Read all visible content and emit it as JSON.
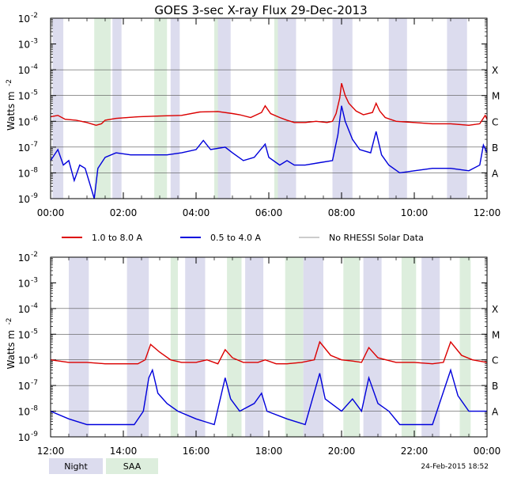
{
  "chart_data": {
    "type": "line",
    "title": "GOES 3-sec X-ray Flux   29-Dec-2013",
    "ylabel_text": "Watts m",
    "ylabel_sup": "-2",
    "yscale": "log",
    "ylim": [
      1e-09,
      0.01
    ],
    "y_tick_base": "10",
    "y_ticks": [
      {
        "exp": -2,
        "label": "-2"
      },
      {
        "exp": -3,
        "label": "-3"
      },
      {
        "exp": -4,
        "label": "-4"
      },
      {
        "exp": -5,
        "label": "-5"
      },
      {
        "exp": -6,
        "label": "-6"
      },
      {
        "exp": -7,
        "label": "-7"
      },
      {
        "exp": -8,
        "label": "-8"
      },
      {
        "exp": -9,
        "label": "-9"
      }
    ],
    "flare_classes": [
      {
        "label": "X",
        "exp": -4
      },
      {
        "label": "M",
        "exp": -5
      },
      {
        "label": "C",
        "exp": -6
      },
      {
        "label": "B",
        "exp": -7
      },
      {
        "label": "A",
        "exp": -8
      }
    ],
    "legend": [
      {
        "label": "1.0 to 8.0 A",
        "color": "#dd0000"
      },
      {
        "label": "0.5 to 4.0 A",
        "color": "#0000dd"
      },
      {
        "label": "No RHESSI Solar Data",
        "color": "#999999"
      }
    ],
    "shade_legend": [
      {
        "label": "Night",
        "color": "#dcdcee"
      },
      {
        "label": "SAA",
        "color": "#ddeedd"
      }
    ],
    "footer": "24-Feb-2015 18:52",
    "panels": [
      {
        "name": "00-12 UT",
        "xlim": [
          0,
          12
        ],
        "x_tick_labels": [
          "00:00",
          "02:00",
          "04:00",
          "06:00",
          "08:00",
          "10:00",
          "12:00"
        ],
        "night": [
          [
            0.05,
            0.35
          ],
          [
            1.7,
            1.95
          ],
          [
            3.3,
            3.55
          ],
          [
            4.6,
            4.95
          ],
          [
            6.25,
            6.75
          ],
          [
            7.75,
            8.3
          ],
          [
            9.3,
            9.8
          ],
          [
            10.9,
            11.45
          ]
        ],
        "saa": [
          [
            1.2,
            1.65
          ],
          [
            2.85,
            3.2
          ],
          [
            4.5,
            4.75
          ],
          [
            6.15,
            6.35
          ]
        ],
        "long": [
          [
            0,
            1.5e-06
          ],
          [
            0.2,
            1.7e-06
          ],
          [
            0.4,
            1.2e-06
          ],
          [
            0.7,
            1.1e-06
          ],
          [
            1.0,
            9e-07
          ],
          [
            1.25,
            7e-07
          ],
          [
            1.4,
            8e-07
          ],
          [
            1.5,
            1.1e-06
          ],
          [
            1.8,
            1.3e-06
          ],
          [
            2.4,
            1.5e-06
          ],
          [
            3.0,
            1.6e-06
          ],
          [
            3.6,
            1.7e-06
          ],
          [
            4.1,
            2.3e-06
          ],
          [
            4.6,
            2.4e-06
          ],
          [
            5.0,
            2e-06
          ],
          [
            5.2,
            1.8e-06
          ],
          [
            5.5,
            1.4e-06
          ],
          [
            5.8,
            2.2e-06
          ],
          [
            5.9,
            4e-06
          ],
          [
            6.05,
            2e-06
          ],
          [
            6.3,
            1.4e-06
          ],
          [
            6.5,
            1.1e-06
          ],
          [
            6.7,
            9e-07
          ],
          [
            7.0,
            9e-07
          ],
          [
            7.3,
            1e-06
          ],
          [
            7.6,
            9e-07
          ],
          [
            7.75,
            1e-06
          ],
          [
            7.85,
            2e-06
          ],
          [
            7.95,
            8e-06
          ],
          [
            8.0,
            3e-05
          ],
          [
            8.1,
            1e-05
          ],
          [
            8.2,
            5e-06
          ],
          [
            8.4,
            2.5e-06
          ],
          [
            8.6,
            1.8e-06
          ],
          [
            8.85,
            2.2e-06
          ],
          [
            8.95,
            5e-06
          ],
          [
            9.05,
            2.5e-06
          ],
          [
            9.2,
            1.4e-06
          ],
          [
            9.5,
            1e-06
          ],
          [
            10.0,
            9e-07
          ],
          [
            10.5,
            8e-07
          ],
          [
            11.0,
            8e-07
          ],
          [
            11.5,
            7e-07
          ],
          [
            11.8,
            8e-07
          ],
          [
            11.95,
            1.7e-06
          ],
          [
            12.0,
            1.2e-06
          ]
        ],
        "short": [
          [
            0,
            3e-08
          ],
          [
            0.2,
            8e-08
          ],
          [
            0.35,
            2e-08
          ],
          [
            0.5,
            3e-08
          ],
          [
            0.65,
            5e-09
          ],
          [
            0.8,
            2e-08
          ],
          [
            0.95,
            1.5e-08
          ],
          [
            1.1,
            3e-09
          ],
          [
            1.2,
            1e-09
          ],
          [
            1.3,
            1.5e-08
          ],
          [
            1.5,
            4e-08
          ],
          [
            1.8,
            6e-08
          ],
          [
            2.2,
            5e-08
          ],
          [
            2.7,
            5e-08
          ],
          [
            3.2,
            5e-08
          ],
          [
            3.6,
            6e-08
          ],
          [
            4.0,
            8e-08
          ],
          [
            4.2,
            1.8e-07
          ],
          [
            4.4,
            8e-08
          ],
          [
            4.8,
            1e-07
          ],
          [
            5.0,
            6e-08
          ],
          [
            5.3,
            3e-08
          ],
          [
            5.6,
            4e-08
          ],
          [
            5.9,
            1.3e-07
          ],
          [
            6.0,
            4e-08
          ],
          [
            6.3,
            2e-08
          ],
          [
            6.5,
            3e-08
          ],
          [
            6.7,
            2e-08
          ],
          [
            7.0,
            2e-08
          ],
          [
            7.4,
            2.5e-08
          ],
          [
            7.75,
            3e-08
          ],
          [
            7.9,
            3e-07
          ],
          [
            8.0,
            4e-06
          ],
          [
            8.1,
            1e-06
          ],
          [
            8.3,
            2e-07
          ],
          [
            8.5,
            8e-08
          ],
          [
            8.8,
            6e-08
          ],
          [
            8.95,
            4e-07
          ],
          [
            9.1,
            5e-08
          ],
          [
            9.3,
            2e-08
          ],
          [
            9.6,
            1e-08
          ],
          [
            10.0,
            1.2e-08
          ],
          [
            10.5,
            1.5e-08
          ],
          [
            11.0,
            1.5e-08
          ],
          [
            11.5,
            1.2e-08
          ],
          [
            11.8,
            2e-08
          ],
          [
            11.9,
            1.2e-07
          ],
          [
            12.0,
            6e-08
          ]
        ]
      },
      {
        "name": "12-24 UT",
        "xlim": [
          12,
          24
        ],
        "x_tick_labels": [
          "12:00",
          "14:00",
          "16:00",
          "18:00",
          "20:00",
          "22:00",
          "00:00"
        ],
        "night": [
          [
            12.5,
            13.05
          ],
          [
            14.1,
            14.7
          ],
          [
            15.7,
            16.25
          ],
          [
            17.35,
            17.85
          ],
          [
            18.95,
            19.5
          ],
          [
            20.6,
            21.1
          ],
          [
            22.2,
            22.7
          ]
        ],
        "saa": [
          [
            15.3,
            15.5
          ],
          [
            16.85,
            17.25
          ],
          [
            18.45,
            18.95
          ],
          [
            20.05,
            20.5
          ],
          [
            21.65,
            22.05
          ],
          [
            23.25,
            23.55
          ]
        ],
        "long": [
          [
            12.0,
            1e-06
          ],
          [
            12.5,
            8e-07
          ],
          [
            13.0,
            8e-07
          ],
          [
            13.5,
            7e-07
          ],
          [
            14.0,
            7e-07
          ],
          [
            14.4,
            7e-07
          ],
          [
            14.6,
            1e-06
          ],
          [
            14.75,
            4e-06
          ],
          [
            15.0,
            2e-06
          ],
          [
            15.3,
            1e-06
          ],
          [
            15.6,
            8e-07
          ],
          [
            16.0,
            8e-07
          ],
          [
            16.3,
            1e-06
          ],
          [
            16.6,
            7e-07
          ],
          [
            16.8,
            2.5e-06
          ],
          [
            17.0,
            1.2e-06
          ],
          [
            17.3,
            8e-07
          ],
          [
            17.7,
            8e-07
          ],
          [
            17.9,
            1e-06
          ],
          [
            18.2,
            7e-07
          ],
          [
            18.5,
            7e-07
          ],
          [
            18.9,
            8e-07
          ],
          [
            19.25,
            1e-06
          ],
          [
            19.4,
            5e-06
          ],
          [
            19.7,
            1.5e-06
          ],
          [
            20.0,
            1e-06
          ],
          [
            20.3,
            9e-07
          ],
          [
            20.55,
            8e-07
          ],
          [
            20.75,
            3e-06
          ],
          [
            21.0,
            1.2e-06
          ],
          [
            21.5,
            8e-07
          ],
          [
            22.0,
            8e-07
          ],
          [
            22.5,
            7e-07
          ],
          [
            22.8,
            8e-07
          ],
          [
            23.0,
            5e-06
          ],
          [
            23.3,
            1.5e-06
          ],
          [
            23.6,
            1e-06
          ],
          [
            24.0,
            8e-07
          ]
        ],
        "short": [
          [
            12.0,
            1e-08
          ],
          [
            12.5,
            5e-09
          ],
          [
            13.0,
            3e-09
          ],
          [
            13.5,
            3e-09
          ],
          [
            14.0,
            3e-09
          ],
          [
            14.3,
            3e-09
          ],
          [
            14.55,
            1e-08
          ],
          [
            14.7,
            2e-07
          ],
          [
            14.8,
            4e-07
          ],
          [
            14.95,
            5e-08
          ],
          [
            15.2,
            2e-08
          ],
          [
            15.5,
            1e-08
          ],
          [
            16.0,
            5e-09
          ],
          [
            16.5,
            3e-09
          ],
          [
            16.8,
            2e-07
          ],
          [
            16.95,
            3e-08
          ],
          [
            17.2,
            1e-08
          ],
          [
            17.6,
            2e-08
          ],
          [
            17.8,
            5e-08
          ],
          [
            17.95,
            1e-08
          ],
          [
            18.5,
            5e-09
          ],
          [
            19.0,
            3e-09
          ],
          [
            19.4,
            3e-07
          ],
          [
            19.55,
            3e-08
          ],
          [
            20.0,
            1e-08
          ],
          [
            20.3,
            3e-08
          ],
          [
            20.55,
            1e-08
          ],
          [
            20.75,
            2e-07
          ],
          [
            21.0,
            2e-08
          ],
          [
            21.3,
            1e-08
          ],
          [
            21.6,
            3e-09
          ],
          [
            22.0,
            3e-09
          ],
          [
            22.5,
            3e-09
          ],
          [
            23.0,
            4e-07
          ],
          [
            23.2,
            4e-08
          ],
          [
            23.5,
            1e-08
          ],
          [
            24.0,
            1e-08
          ]
        ]
      }
    ]
  }
}
